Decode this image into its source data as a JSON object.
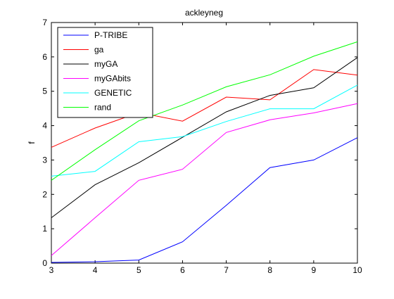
{
  "chart_data": {
    "type": "line",
    "title": "ackleyneg",
    "xlabel": "",
    "ylabel": "f",
    "xlim": [
      3,
      10
    ],
    "ylim": [
      0,
      7
    ],
    "xticks": [
      3,
      4,
      5,
      6,
      7,
      8,
      9,
      10
    ],
    "yticks": [
      0,
      1,
      2,
      3,
      4,
      5,
      6,
      7
    ],
    "grid": false,
    "legend_position": "top-left",
    "x": [
      3,
      4,
      5,
      6,
      7,
      8,
      9,
      10
    ],
    "series": [
      {
        "name": "P-TRIBE",
        "color": "#0000ff",
        "values": [
          0.02,
          0.04,
          0.09,
          0.62,
          1.68,
          2.78,
          3.0,
          3.65
        ]
      },
      {
        "name": "ga",
        "color": "#ff0000",
        "values": [
          3.37,
          3.93,
          4.38,
          4.13,
          4.83,
          4.75,
          5.63,
          5.47
        ]
      },
      {
        "name": "myGA",
        "color": "#000000",
        "values": [
          1.32,
          2.28,
          2.92,
          3.66,
          4.4,
          4.88,
          5.1,
          5.98
        ]
      },
      {
        "name": "myGAbits",
        "color": "#ff00ff",
        "values": [
          0.22,
          1.32,
          2.41,
          2.73,
          3.8,
          4.17,
          4.37,
          4.64
        ]
      },
      {
        "name": "GENETIC",
        "color": "#00ffff",
        "values": [
          2.53,
          2.67,
          3.53,
          3.68,
          4.12,
          4.49,
          4.49,
          5.18
        ]
      },
      {
        "name": "rand",
        "color": "#00ff00",
        "values": [
          2.41,
          3.3,
          4.14,
          4.6,
          5.13,
          5.48,
          6.02,
          6.44
        ]
      }
    ]
  }
}
